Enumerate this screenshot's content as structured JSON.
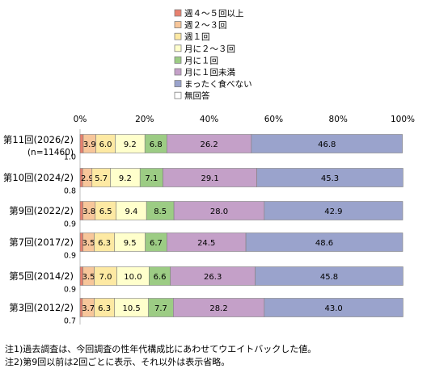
{
  "chart_data": {
    "type": "bar",
    "orientation": "horizontal",
    "stacked": "percent",
    "xlim": [
      0,
      100
    ],
    "xticks": [
      "0%",
      "20%",
      "40%",
      "60%",
      "80%",
      "100%"
    ],
    "grid": false,
    "legend_position": "top",
    "categories": [
      {
        "label": "第11回(2026/2)",
        "sub": "(n=11460)"
      },
      {
        "label": "第10回(2024/2)",
        "sub": ""
      },
      {
        "label": "第9回(2022/2)",
        "sub": ""
      },
      {
        "label": "第7回(2017/2)",
        "sub": ""
      },
      {
        "label": "第5回(2014/2)",
        "sub": ""
      },
      {
        "label": "第3回(2012/2)",
        "sub": ""
      }
    ],
    "series": [
      {
        "name": "週４～５回以上",
        "color": "#e8806e",
        "values": [
          1.0,
          0.8,
          0.9,
          0.9,
          0.9,
          0.7
        ],
        "labeled": false
      },
      {
        "name": "週２～３回",
        "color": "#f7c69a",
        "values": [
          3.9,
          2.9,
          3.8,
          3.5,
          3.5,
          3.7
        ],
        "labeled": true
      },
      {
        "name": "週１回",
        "color": "#fde9a3",
        "values": [
          6.0,
          5.7,
          6.5,
          6.3,
          7.0,
          6.3
        ],
        "labeled": true
      },
      {
        "name": "月に２～３回",
        "color": "#ffffcc",
        "values": [
          9.2,
          9.2,
          9.4,
          9.5,
          10.0,
          10.5
        ],
        "labeled": true
      },
      {
        "name": "月に１回",
        "color": "#9ccc84",
        "values": [
          6.8,
          7.1,
          8.5,
          6.7,
          6.6,
          7.7
        ],
        "labeled": true
      },
      {
        "name": "月に１回未満",
        "color": "#c4a0c8",
        "values": [
          26.2,
          29.1,
          28.0,
          24.5,
          26.3,
          28.2
        ],
        "labeled": true
      },
      {
        "name": "まったく食べない",
        "color": "#9aa3cc",
        "values": [
          46.8,
          45.3,
          42.9,
          48.6,
          45.8,
          43.0
        ],
        "labeled": true
      },
      {
        "name": "無回答",
        "color": "#ffffff",
        "values": [
          0,
          0,
          0,
          0,
          0,
          0
        ],
        "labeled": false
      }
    ]
  },
  "notes": [
    "注1)過去調査は、今回調査の性年代構成比にあわせてウエイトバックした値。",
    "注2)第9回以前は2回ごとに表示、それ以外は表示省略。"
  ]
}
